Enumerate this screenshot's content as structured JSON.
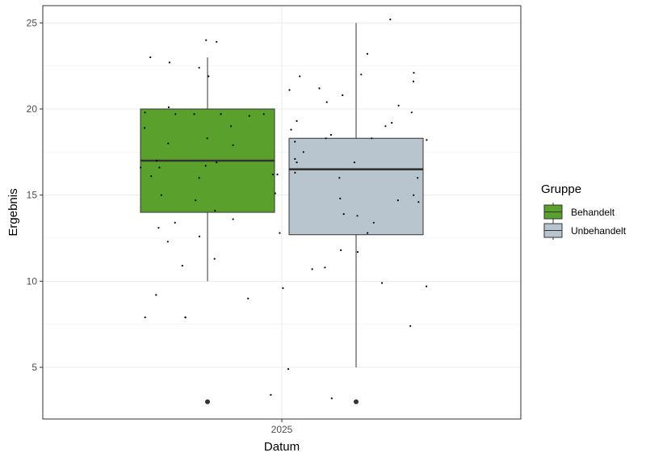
{
  "chart_data": {
    "type": "boxplot",
    "xlabel": "Datum",
    "ylabel": "Ergebnis",
    "categories": [
      "2025"
    ],
    "ylim": [
      2,
      26
    ],
    "yticks": [
      5,
      10,
      15,
      20,
      25
    ],
    "grid": true,
    "legend": {
      "title": "Gruppe",
      "placement": "right",
      "entries": [
        "Behandelt",
        "Unbehandelt"
      ]
    },
    "series": [
      {
        "name": "Behandelt",
        "color": "#5aa02c",
        "whisker_low": 10.0,
        "q1": 14.0,
        "median": 17.0,
        "q3": 20.0,
        "whisker_high": 23.0,
        "outliers": [
          3.0
        ],
        "points": [
          24.0,
          23.9,
          23.0,
          22.7,
          22.4,
          21.9,
          19.8,
          19.7,
          19.7,
          19.7,
          19.7,
          19.6,
          19.0,
          18.9,
          18.3,
          18.0,
          17.9,
          17.0,
          16.9,
          16.7,
          16.6,
          16.6,
          16.2,
          16.2,
          16.1,
          16.0,
          15.1,
          15.0,
          14.7,
          14.1,
          13.6,
          13.4,
          13.1,
          12.8,
          12.6,
          12.3,
          11.3,
          10.9,
          9.2,
          9.0,
          7.9,
          7.9,
          7.9,
          3.4,
          20.1
        ]
      },
      {
        "name": "Unbehandelt",
        "color": "#b8c5ce",
        "whisker_low": 5.0,
        "q1": 12.7,
        "median": 16.5,
        "q3": 18.3,
        "whisker_high": 25.0,
        "outliers": [
          3.0
        ],
        "points": [
          25.2,
          23.2,
          22.1,
          22.0,
          21.9,
          21.6,
          21.2,
          21.1,
          20.8,
          20.4,
          20.2,
          19.8,
          19.3,
          19.2,
          19.0,
          18.8,
          18.5,
          18.3,
          18.3,
          18.2,
          18.1,
          17.5,
          17.1,
          16.9,
          16.9,
          16.3,
          16.0,
          15.0,
          14.8,
          14.7,
          14.6,
          13.9,
          13.8,
          13.4,
          12.8,
          11.7,
          11.8,
          10.8,
          10.7,
          9.9,
          9.7,
          9.6,
          7.4,
          4.9,
          3.2,
          16.0
        ]
      }
    ]
  }
}
